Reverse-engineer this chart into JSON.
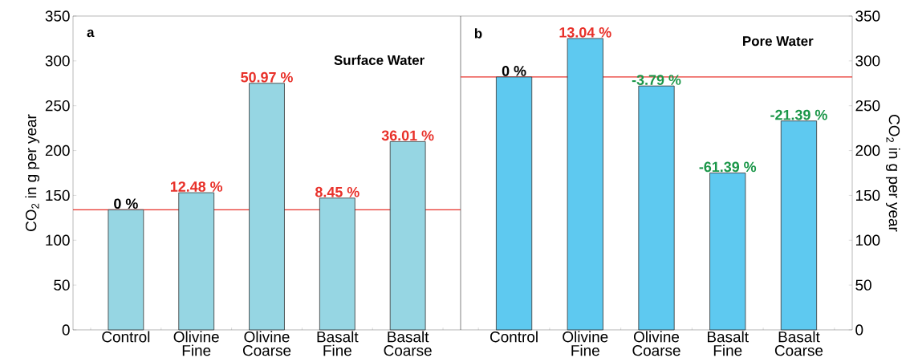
{
  "chart_data": [
    {
      "type": "bar",
      "title": "Surface Water",
      "ylabel": "CO$_{2}$ in g per year",
      "categories": [
        "Control",
        "Olivine Fine",
        "Olivine Coarse",
        "Basalt Fine",
        "Basalt Coarse"
      ],
      "values": [
        134,
        153,
        275,
        147,
        210
      ],
      "color": "#96d6e3",
      "annotations": [
        "a",
        {
          "text": "0 %",
          "x": "Control",
          "y": 134
        },
        {
          "text": "12.48 %",
          "x": "Olivine Fine",
          "y": 153
        },
        {
          "text": "50.97 %",
          "x": "Olivine Coarse",
          "y": 275
        },
        {
          "text": "8.45 %",
          "x": "Basalt Fine",
          "y": 147
        },
        {
          "text": "36.01 %",
          "x": "Basalt Coarse",
          "y": 210
        }
      ],
      "ylim": [
        0,
        350
      ],
      "yticks": [
        0,
        50,
        100,
        150,
        200,
        250,
        300,
        350
      ],
      "ref_lines": [
        {
          "axis": "y",
          "value": 134,
          "color": "#e8312a"
        }
      ]
    },
    {
      "type": "bar",
      "title": "Pore Water",
      "ylabel": "CO$_{2}$ in g per year",
      "categories": [
        "Control",
        "Olivine Fine",
        "Olivine Coarse",
        "Basalt Fine",
        "Basalt Coarse"
      ],
      "values": [
        282,
        325,
        272,
        175,
        233
      ],
      "color": "#5ec9f0",
      "annotations": [
        "b",
        {
          "text": "0 %",
          "x": "Control",
          "y": 282
        },
        {
          "text": "13.04 %",
          "x": "Olivine Fine",
          "y": 325
        },
        {
          "text": "-3.79 %",
          "x": "Olivine Coarse",
          "y": 272
        },
        {
          "text": "-61.39 %",
          "x": "Basalt Fine",
          "y": 175
        },
        {
          "text": "-21.39 %",
          "x": "Basalt Coarse",
          "y": 233
        }
      ],
      "ylim": [
        0,
        350
      ],
      "yticks": [
        0,
        50,
        100,
        150,
        200,
        250,
        300,
        350
      ],
      "ref_lines": [
        {
          "axis": "y",
          "value": 282,
          "color": "#e8312a"
        }
      ]
    }
  ]
}
